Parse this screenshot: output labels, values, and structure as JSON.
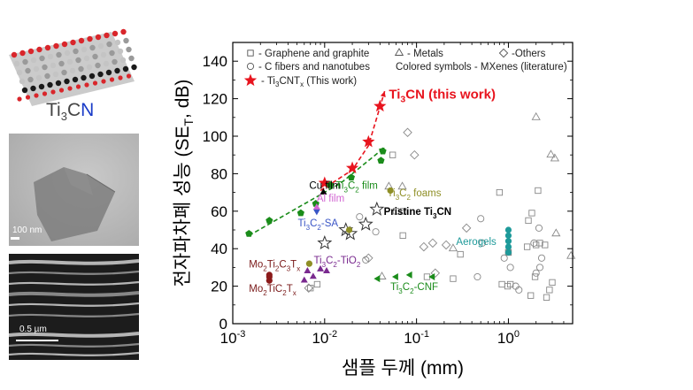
{
  "panels": {
    "molecule_label": {
      "ti": "Ti",
      "sub": "3",
      "c": "C",
      "n": "N"
    },
    "tem_scale": "100 nm",
    "sem_scale": "0.5 µm"
  },
  "chart_data": {
    "type": "scatter",
    "xlabel": "샘플 두께 (mm)",
    "ylabel": "전자파차폐 성능 (SET, dB)",
    "xscale": "log",
    "xlim": [
      0.001,
      5
    ],
    "ylim": [
      0,
      150
    ],
    "x_ticks": [
      0.001,
      0.01,
      0.1,
      1
    ],
    "x_tick_labels": [
      "10-3",
      "10-2",
      "10-1",
      "100"
    ],
    "y_ticks": [
      0,
      20,
      40,
      60,
      80,
      100,
      120,
      140
    ],
    "legend": {
      "placement": "top-left",
      "entries": [
        {
          "marker": "square",
          "label": "- Graphene and graphite"
        },
        {
          "marker": "triangle",
          "label": "- Metals"
        },
        {
          "marker": "diamond",
          "label": "-Others"
        },
        {
          "marker": "circle",
          "label": "- C fibers and nanotubes"
        },
        {
          "marker": "none",
          "label": "Colored symbols - MXenes (literature)"
        },
        {
          "marker": "star-red",
          "label": "- Ti3CNTx (This work)"
        }
      ]
    },
    "annotations": [
      {
        "text": "Ti3CN (this work)",
        "x": 0.05,
        "y": 120,
        "color": "#e8141e",
        "bold": true
      },
      {
        "text": "Cu film",
        "x": 0.0068,
        "y": 72,
        "color": "#000000"
      },
      {
        "text": "Ti3C2 film",
        "x": 0.0132,
        "y": 72,
        "color": "#1a8c1a"
      },
      {
        "text": "Al film",
        "x": 0.0082,
        "y": 65,
        "color": "#d266d2"
      },
      {
        "text": "Ti3C2 foams",
        "x": 0.048,
        "y": 68,
        "color": "#8f8f26"
      },
      {
        "text": "Pristine Ti3CN",
        "x": 0.044,
        "y": 58,
        "color": "#000000",
        "bold": true
      },
      {
        "text": "Ti3C2-SA",
        "x": 0.0051,
        "y": 52,
        "color": "#3a55c6"
      },
      {
        "text": "Aerogels",
        "x": 0.27,
        "y": 42,
        "color": "#1e9a9a"
      },
      {
        "text": "Mo2Ti2C3Tx",
        "x": 0.0015,
        "y": 30,
        "color": "#7a1a1a"
      },
      {
        "text": "Ti3C2-TiO2",
        "x": 0.0076,
        "y": 32,
        "color": "#7a2a8f"
      },
      {
        "text": "Mo2TiC2Tx",
        "x": 0.0015,
        "y": 17,
        "color": "#7a1a1a"
      },
      {
        "text": "Ti3C2-CNF",
        "x": 0.052,
        "y": 18,
        "color": "#1a8c1a"
      }
    ],
    "series": [
      {
        "name": "Ti3CNTx (This work)",
        "marker": "star-filled",
        "color": "#e8141e",
        "x": [
          0.01,
          0.02,
          0.03,
          0.04
        ],
        "y": [
          75,
          83,
          97,
          116
        ]
      },
      {
        "name": "Pristine Ti3CN",
        "marker": "star-open",
        "color": "#333333",
        "x": [
          0.01,
          0.017,
          0.019,
          0.028,
          0.037
        ],
        "y": [
          43,
          50,
          48,
          53,
          61
        ]
      },
      {
        "name": "Ti3C2 film",
        "marker": "pentagon",
        "color": "#1a8c1a",
        "x": [
          0.0015,
          0.0025,
          0.0055,
          0.008,
          0.0115,
          0.0195,
          0.041,
          0.043
        ],
        "y": [
          48,
          55,
          59,
          64,
          74,
          78,
          87,
          92
        ]
      },
      {
        "name": "Ti3C2-CNF",
        "marker": "triangle-left",
        "color": "#1a8c1a",
        "x": [
          0.038,
          0.06,
          0.085,
          0.15
        ],
        "y": [
          24,
          25,
          26,
          25
        ]
      },
      {
        "name": "Ti3C2-TiO2",
        "marker": "triangle-up",
        "color": "#7a2a8f",
        "x": [
          0.006,
          0.0065,
          0.0075,
          0.009,
          0.0105
        ],
        "y": [
          23,
          28,
          25,
          29,
          28
        ]
      },
      {
        "name": "Mo2Ti2C3Tx",
        "marker": "circle",
        "color": "#8b1a1a",
        "x": [
          0.0025,
          0.0025,
          0.0025
        ],
        "y": [
          26,
          23,
          25
        ]
      },
      {
        "name": "Ti3C2-SA",
        "marker": "triangle-down",
        "color": "#3a55c6",
        "x": [
          0.0082
        ],
        "y": [
          60
        ]
      },
      {
        "name": "Cu film",
        "marker": "triangle-up",
        "color": "#000000",
        "x": [
          0.0097
        ],
        "y": [
          70
        ]
      },
      {
        "name": "Al film",
        "marker": "triangle-up",
        "color": "#d266d2",
        "x": [
          0.0082
        ],
        "y": [
          62
        ]
      },
      {
        "name": "Ti3C2 foams",
        "marker": "circle",
        "color": "#8f8f26",
        "x": [
          0.0068,
          0.0185,
          0.052
        ],
        "y": [
          32,
          50,
          71
        ]
      },
      {
        "name": "Aerogels",
        "marker": "circle",
        "color": "#1e9a9a",
        "x": [
          1.0,
          1.0,
          1.0,
          1.0,
          1.0
        ],
        "y": [
          38,
          41,
          44,
          47,
          50
        ]
      },
      {
        "name": "Graphene and graphite",
        "marker": "square-open",
        "color": "#888888",
        "x": [
          0.007,
          0.0083,
          0.055,
          0.06,
          0.072,
          0.071,
          0.13,
          0.3,
          0.8,
          0.98,
          1.0,
          1.05,
          1.6,
          1.65,
          1.8,
          2.0,
          2.1,
          2.5,
          2.6,
          2.8,
          3.0,
          0.25,
          0.85,
          1.0,
          1.95,
          2.2,
          1.75
        ],
        "y": [
          19,
          21,
          90,
          60,
          60,
          47,
          25,
          37,
          70,
          20,
          38,
          21,
          41,
          55,
          59,
          42,
          71,
          42,
          14,
          18,
          22,
          24,
          21,
          38,
          25,
          43,
          15
        ]
      },
      {
        "name": "C fibers and nanotubes",
        "marker": "circle-open",
        "color": "#888888",
        "x": [
          0.024,
          0.036,
          0.028,
          0.5,
          0.46,
          0.52,
          0.9,
          1.05,
          1.2,
          1.3,
          2.0,
          2.2,
          2.3,
          2.15,
          1.9
        ],
        "y": [
          57,
          49,
          34,
          56,
          25,
          43,
          35,
          30,
          20,
          18,
          27,
          30,
          35,
          51,
          43
        ]
      },
      {
        "name": "Metals",
        "marker": "triangle-open",
        "color": "#888888",
        "x": [
          0.05,
          0.07,
          0.042,
          0.25,
          2.0,
          2.9,
          3.2,
          4.8,
          3.3
        ],
        "y": [
          73,
          73,
          25,
          40,
          110,
          90,
          88,
          36,
          48
        ]
      },
      {
        "name": "Others",
        "marker": "diamond-open",
        "color": "#888888",
        "x": [
          0.0067,
          0.08,
          0.095,
          0.15,
          0.35,
          0.03,
          0.16,
          0.21,
          0.12
        ],
        "y": [
          19,
          102,
          90,
          43,
          51,
          35,
          27,
          42,
          41
        ]
      }
    ],
    "trend_lines": [
      {
        "color": "#e8141e",
        "points": [
          [
            0.009,
            71
          ],
          [
            0.02,
            82
          ],
          [
            0.03,
            95
          ],
          [
            0.045,
            124
          ]
        ],
        "arrow": true
      },
      {
        "color": "#1a8c1a",
        "points": [
          [
            0.0015,
            47
          ],
          [
            0.015,
            75
          ],
          [
            0.045,
            94
          ]
        ],
        "arrow": true
      }
    ]
  }
}
